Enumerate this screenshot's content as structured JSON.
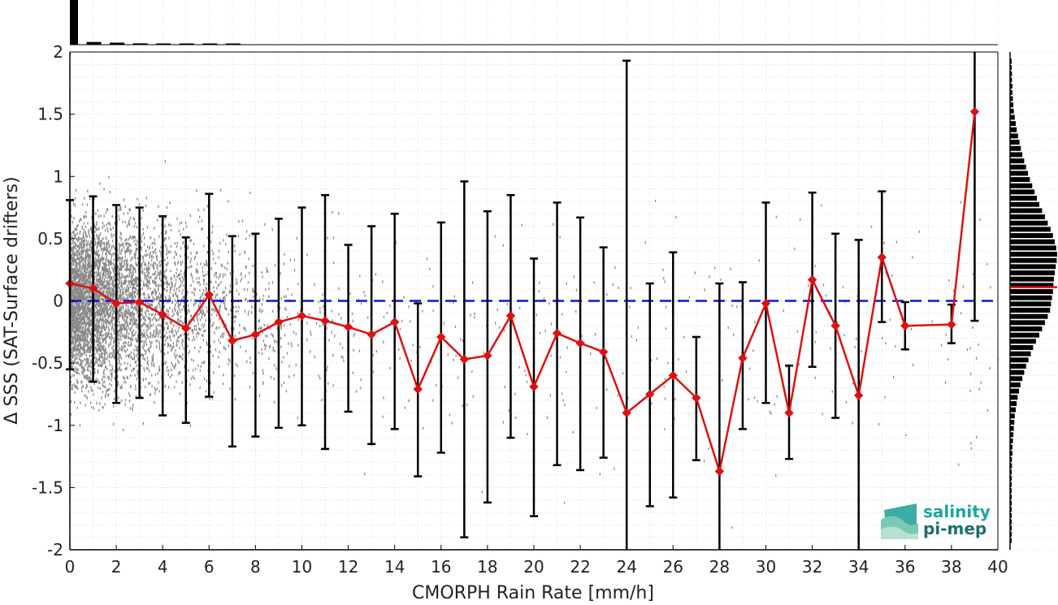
{
  "chart_data": {
    "type": "scatter",
    "xlabel": "CMORPH Rain Rate [mm/h]",
    "ylabel": "Δ SSS (SAT-Surface drifters)",
    "xlim": [
      0,
      40
    ],
    "ylim": [
      -2,
      2
    ],
    "x_ticks": [
      "0",
      "2",
      "4",
      "6",
      "8",
      "10",
      "12",
      "14",
      "16",
      "18",
      "20",
      "22",
      "24",
      "26",
      "28",
      "30",
      "32",
      "34",
      "36",
      "38",
      "40"
    ],
    "y_ticks": [
      "2",
      "1.5",
      "1",
      "0.5",
      "0",
      "-0.5",
      "-1",
      "-1.5",
      "-2"
    ],
    "grid": true,
    "reference_line": {
      "y": 0,
      "color": "#1010dd",
      "style": "dashed"
    },
    "scatter_color": "#888888",
    "binned_mean": {
      "color": "#dd1111",
      "marker": "diamond",
      "x": [
        0,
        1,
        2,
        3,
        4,
        5,
        6,
        7,
        8,
        9,
        10,
        11,
        12,
        13,
        14,
        15,
        16,
        17,
        18,
        19,
        20,
        21,
        22,
        23,
        24,
        25,
        26,
        27,
        28,
        29,
        30,
        31,
        32,
        33,
        34,
        35,
        36,
        38,
        39
      ],
      "mean": [
        0.14,
        0.1,
        -0.02,
        -0.01,
        -0.11,
        -0.22,
        0.05,
        -0.32,
        -0.27,
        -0.17,
        -0.12,
        -0.16,
        -0.21,
        -0.27,
        -0.17,
        -0.71,
        -0.29,
        -0.47,
        -0.44,
        -0.12,
        -0.69,
        -0.26,
        -0.34,
        -0.41,
        -0.9,
        -0.75,
        -0.6,
        -0.78,
        -1.37,
        -0.46,
        -0.02,
        -0.9,
        0.17,
        -0.2,
        -0.76,
        0.35,
        -0.2,
        -0.19,
        1.52
      ],
      "err_low": [
        -0.55,
        -0.65,
        -0.82,
        -0.78,
        -0.92,
        -0.98,
        -0.77,
        -1.17,
        -1.09,
        -1.02,
        -1.0,
        -1.19,
        -0.89,
        -1.15,
        -1.03,
        -1.41,
        -1.22,
        -1.9,
        -1.62,
        -1.1,
        -1.73,
        -1.32,
        -1.36,
        -1.26,
        -2.0,
        -1.65,
        -1.58,
        -1.28,
        -2.0,
        -1.03,
        -0.82,
        -1.27,
        -0.53,
        -0.94,
        -2.0,
        -0.17,
        -0.39,
        -0.34,
        -0.16
      ],
      "err_high": [
        0.81,
        0.84,
        0.77,
        0.75,
        0.68,
        0.51,
        0.86,
        0.52,
        0.54,
        0.66,
        0.75,
        0.85,
        0.45,
        0.6,
        0.7,
        -0.02,
        0.63,
        0.96,
        0.72,
        0.85,
        0.34,
        0.79,
        0.67,
        0.43,
        1.93,
        0.14,
        0.39,
        -0.29,
        0.14,
        0.15,
        0.79,
        -0.52,
        0.87,
        0.54,
        0.49,
        0.88,
        -0.01,
        -0.03,
        2.0
      ]
    },
    "x_histogram": {
      "x": [
        0,
        1,
        2,
        3,
        4,
        5,
        6,
        7
      ],
      "relative": [
        1.0,
        0.06,
        0.045,
        0.03,
        0.022,
        0.016,
        0.012,
        0.009
      ]
    },
    "y_histogram": {
      "y": [
        1.925,
        1.875,
        1.825,
        1.775,
        1.725,
        1.675,
        1.625,
        1.575,
        1.525,
        1.475,
        1.425,
        1.375,
        1.325,
        1.275,
        1.225,
        1.175,
        1.125,
        1.075,
        1.025,
        0.975,
        0.925,
        0.875,
        0.825,
        0.775,
        0.725,
        0.675,
        0.625,
        0.575,
        0.525,
        0.475,
        0.425,
        0.375,
        0.325,
        0.275,
        0.225,
        0.175,
        0.125,
        0.075,
        0.025,
        -0.025,
        -0.075,
        -0.125,
        -0.175,
        -0.225,
        -0.275,
        -0.325,
        -0.375,
        -0.425,
        -0.475,
        -0.525,
        -0.575,
        -0.625,
        -0.675,
        -0.725,
        -0.775,
        -0.825,
        -0.875,
        -0.925,
        -0.975,
        -1.025,
        -1.075,
        -1.125,
        -1.175,
        -1.225,
        -1.275,
        -1.325,
        -1.375,
        -1.425,
        -1.475,
        -1.525,
        -1.575,
        -1.625,
        -1.675,
        -1.725,
        -1.775,
        -1.825,
        -1.875,
        -1.925
      ],
      "relative": [
        0.03,
        0.03,
        0.04,
        0.04,
        0.05,
        0.05,
        0.06,
        0.07,
        0.08,
        0.1,
        0.12,
        0.14,
        0.17,
        0.2,
        0.23,
        0.26,
        0.3,
        0.34,
        0.38,
        0.42,
        0.47,
        0.52,
        0.57,
        0.62,
        0.68,
        0.74,
        0.8,
        0.86,
        0.91,
        0.95,
        0.98,
        1.0,
        0.99,
        0.97,
        0.95,
        0.93,
        0.92,
        0.91,
        0.89,
        0.87,
        0.85,
        0.8,
        0.74,
        0.68,
        0.62,
        0.55,
        0.49,
        0.44,
        0.39,
        0.34,
        0.3,
        0.26,
        0.22,
        0.19,
        0.16,
        0.14,
        0.12,
        0.1,
        0.09,
        0.08,
        0.07,
        0.06,
        0.05,
        0.05,
        0.04,
        0.04,
        0.03,
        0.03,
        0.03,
        0.03,
        0.02,
        0.02,
        0.02,
        0.02,
        0.02,
        0.02,
        0.02,
        0.02
      ],
      "mean_line_y": 0.11,
      "mean_line_color": "#dd1111"
    }
  },
  "logo": {
    "line1": "salinity",
    "line2": "pi-mep",
    "color1": "#1aa7a1",
    "color2": "#1f6f6b"
  }
}
